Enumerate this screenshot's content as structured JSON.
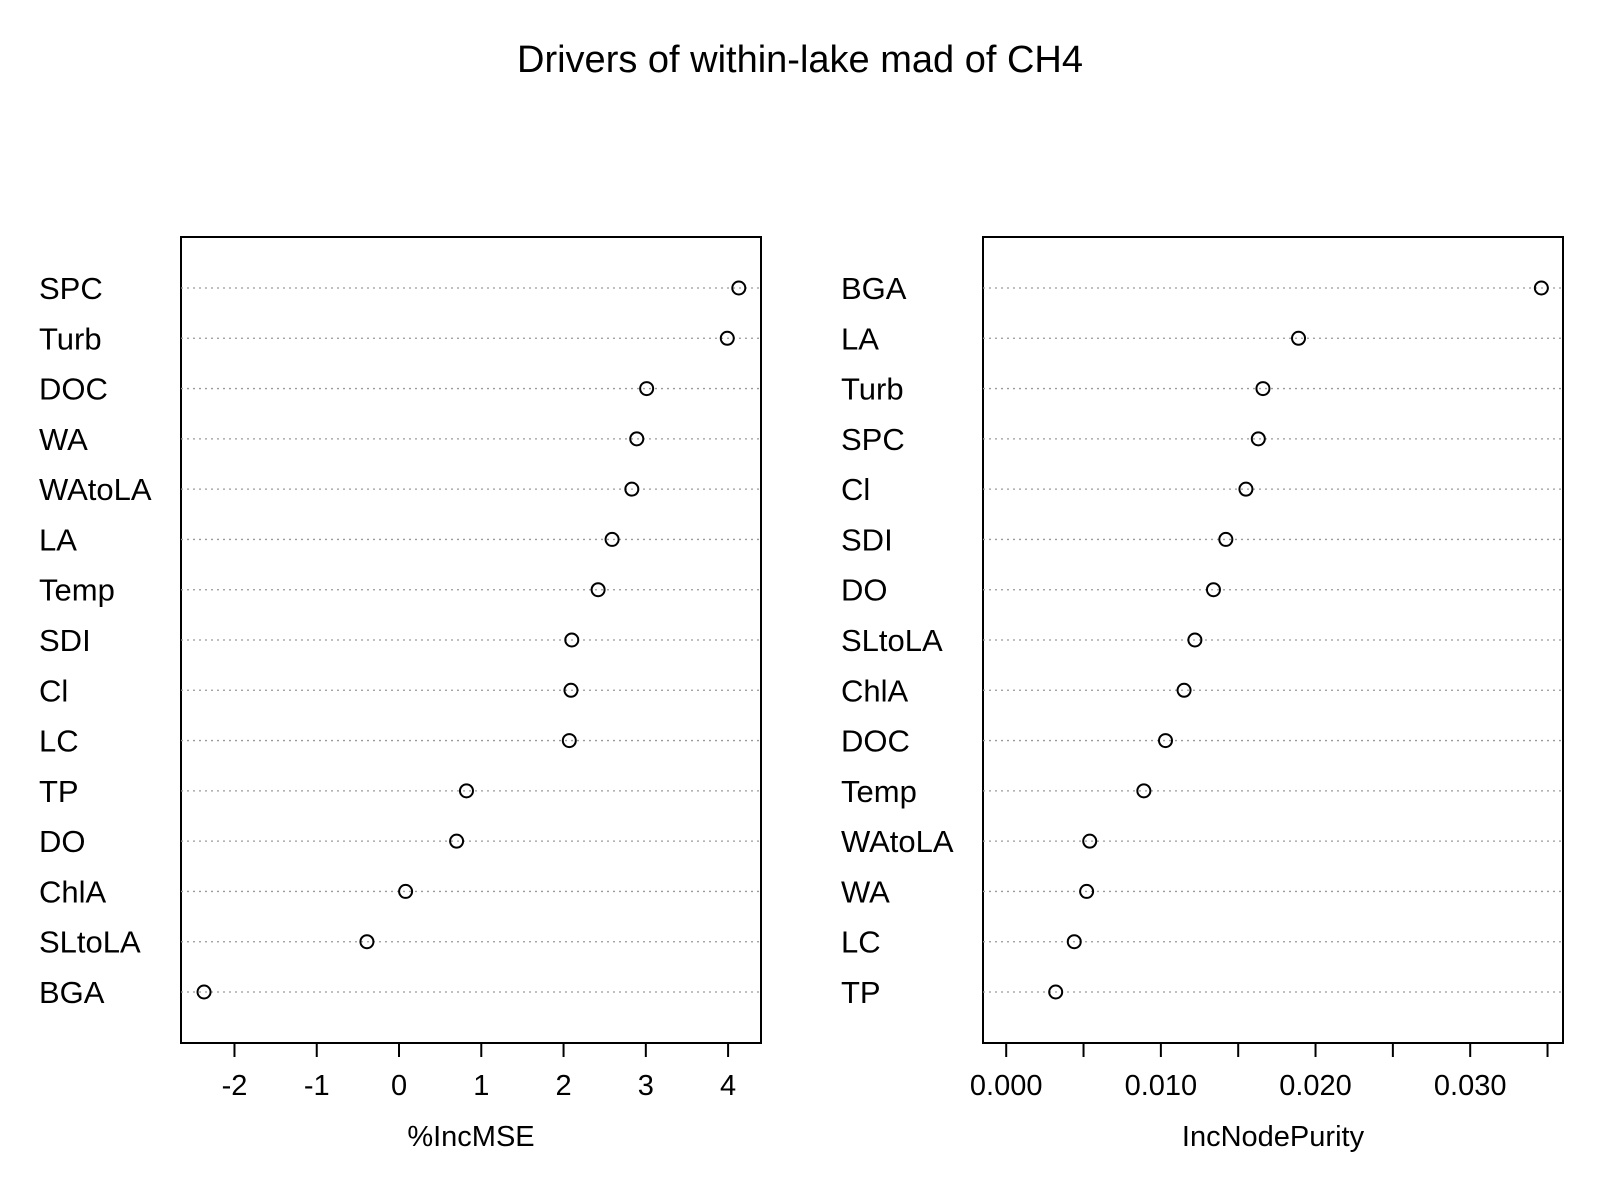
{
  "title": "Drivers of within-lake mad of CH4",
  "chart_data": [
    {
      "type": "scatter",
      "name": "left-panel",
      "xlabel": "%IncMSE",
      "xlim": [
        -2.65,
        4.4
      ],
      "xticks": [
        -2,
        -1,
        0,
        1,
        2,
        3,
        4
      ],
      "xtick_labels": [
        "-2",
        "-1",
        "0",
        "1",
        "2",
        "3",
        "4"
      ],
      "labels": [
        "SPC",
        "Turb",
        "DOC",
        "WA",
        "WAtoLA",
        "LA",
        "Temp",
        "SDI",
        "Cl",
        "LC",
        "TP",
        "DO",
        "ChlA",
        "SLtoLA",
        "BGA"
      ],
      "values": [
        4.13,
        3.99,
        3.01,
        2.89,
        2.83,
        2.59,
        2.42,
        2.1,
        2.09,
        2.07,
        0.82,
        0.7,
        0.08,
        -0.39,
        -2.37
      ],
      "grid": "dotted-horizontal"
    },
    {
      "type": "scatter",
      "name": "right-panel",
      "xlabel": "IncNodePurity",
      "xlim": [
        -0.0015,
        0.036
      ],
      "xticks": [
        0.0,
        0.005,
        0.01,
        0.015,
        0.02,
        0.025,
        0.03,
        0.035
      ],
      "xtick_labels": [
        "0.000",
        "",
        "0.010",
        "",
        "0.020",
        "",
        "0.030",
        ""
      ],
      "labels": [
        "BGA",
        "LA",
        "Turb",
        "SPC",
        "Cl",
        "SDI",
        "DO",
        "SLtoLA",
        "ChlA",
        "DOC",
        "Temp",
        "WAtoLA",
        "WA",
        "LC",
        "TP"
      ],
      "values": [
        0.0346,
        0.0189,
        0.0166,
        0.0163,
        0.0155,
        0.0142,
        0.0134,
        0.0122,
        0.0115,
        0.0103,
        0.0089,
        0.0054,
        0.0052,
        0.0044,
        0.0032
      ],
      "grid": "dotted-horizontal"
    }
  ]
}
